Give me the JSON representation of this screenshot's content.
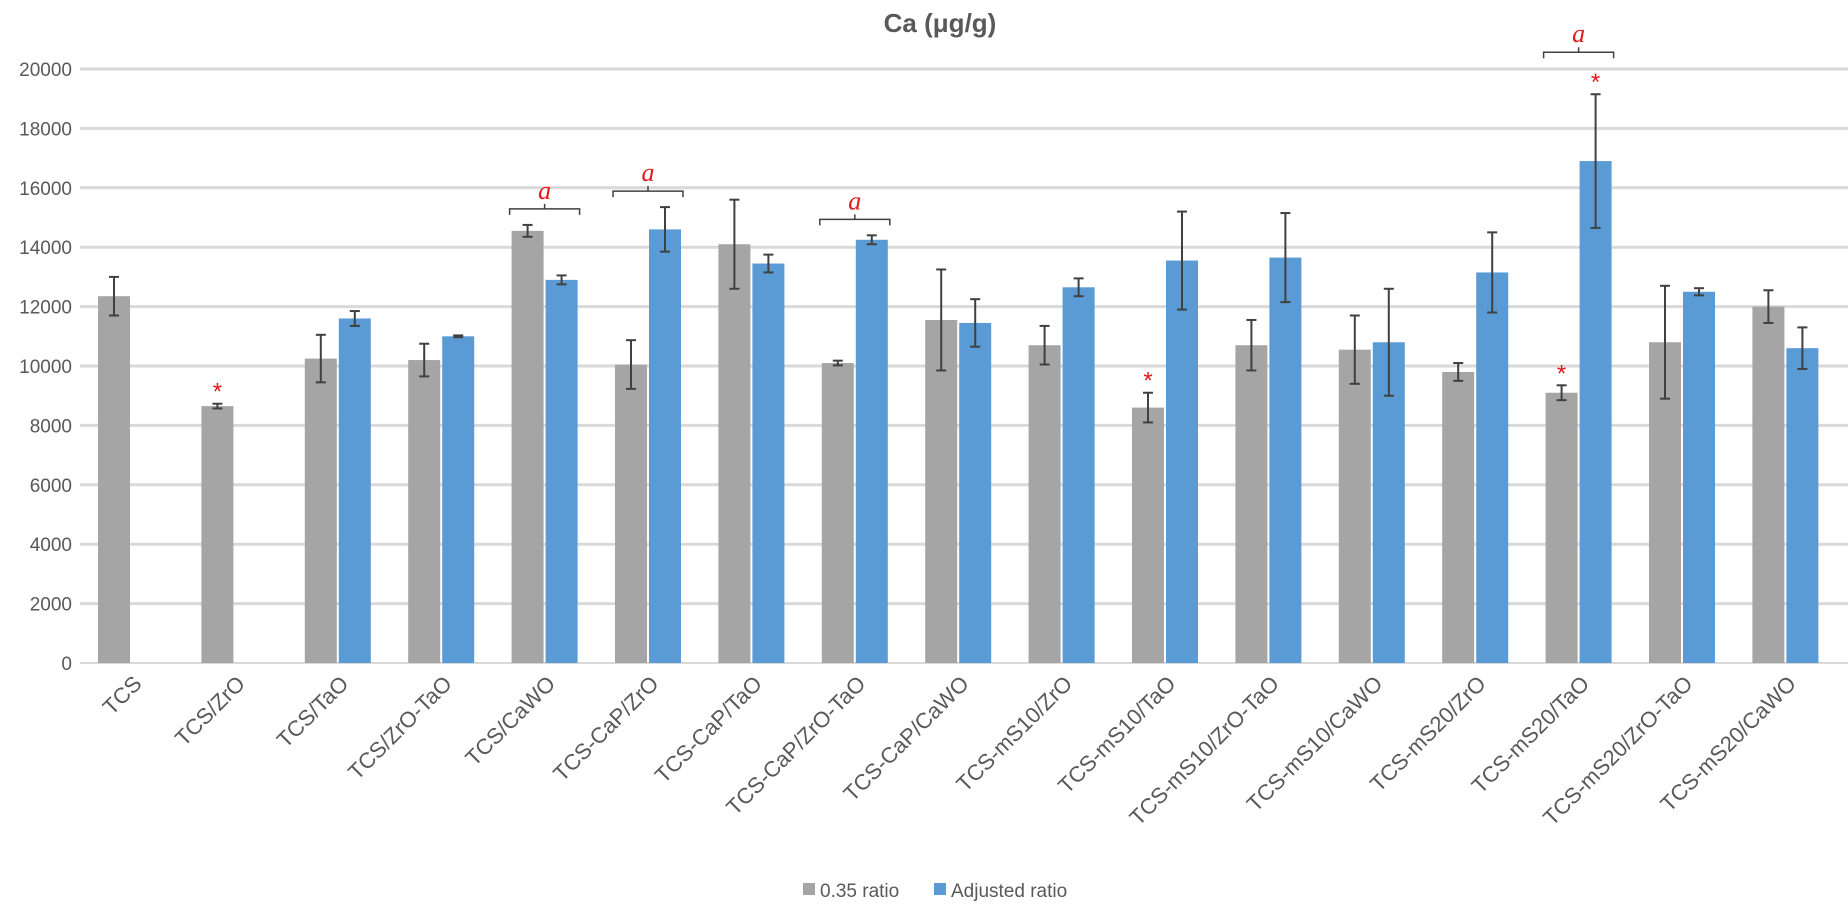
{
  "chart_data": {
    "type": "bar",
    "title": "Ca (μg/g)",
    "xlabel": "",
    "ylabel": "",
    "ylim": [
      0,
      20000
    ],
    "yticks": [
      0,
      2000,
      4000,
      6000,
      8000,
      10000,
      12000,
      14000,
      16000,
      18000,
      20000
    ],
    "grid": true,
    "legend_position": "bottom",
    "categories": [
      "TCS",
      "TCS/ZrO",
      "TCS/TaO",
      "TCS/ZrO-TaO",
      "TCS/CaWO",
      "TCS-CaP/ZrO",
      "TCS-CaP/TaO",
      "TCS-CaP/ZrO-TaO",
      "TCS-CaP/CaWO",
      "TCS-mS10/ZrO",
      "TCS-mS10/TaO",
      "TCS-mS10/ZrO-TaO",
      "TCS-mS10/CaWO",
      "TCS-mS20/ZrO",
      "TCS-mS20/TaO",
      "TCS-mS20/ZrO-TaO",
      "TCS-mS20/CaWO"
    ],
    "series": [
      {
        "name": "0.35 ratio",
        "color": "#a5a5a5",
        "values": [
          12350,
          8650,
          10250,
          10200,
          14550,
          10050,
          14100,
          10100,
          11550,
          10700,
          8600,
          10700,
          10550,
          9800,
          9100,
          10800,
          12000
        ],
        "errors": [
          650,
          80,
          800,
          550,
          200,
          820,
          1500,
          80,
          1700,
          650,
          500,
          850,
          1150,
          300,
          250,
          1900,
          550
        ],
        "sig_star": [
          false,
          true,
          false,
          false,
          false,
          false,
          false,
          false,
          false,
          false,
          true,
          false,
          false,
          false,
          true,
          false,
          false
        ]
      },
      {
        "name": "Adjusted ratio",
        "color": "#5b9bd5",
        "values": [
          null,
          null,
          11600,
          11000,
          12900,
          14600,
          13450,
          14250,
          11450,
          12650,
          13550,
          13650,
          10800,
          13150,
          16900,
          12500,
          10600
        ],
        "errors": [
          null,
          null,
          250,
          30,
          150,
          750,
          300,
          150,
          800,
          300,
          1650,
          1500,
          1800,
          1350,
          2250,
          120,
          700
        ],
        "sig_star": [
          false,
          false,
          false,
          false,
          false,
          false,
          false,
          false,
          false,
          false,
          false,
          false,
          false,
          false,
          true,
          false,
          false
        ]
      }
    ],
    "annotations": {
      "bracket_label": "a",
      "bracket_categories": [
        "TCS/CaWO",
        "TCS-CaP/ZrO",
        "TCS-CaP/ZrO-TaO",
        "TCS-mS20/TaO"
      ],
      "star_label": "*"
    }
  }
}
